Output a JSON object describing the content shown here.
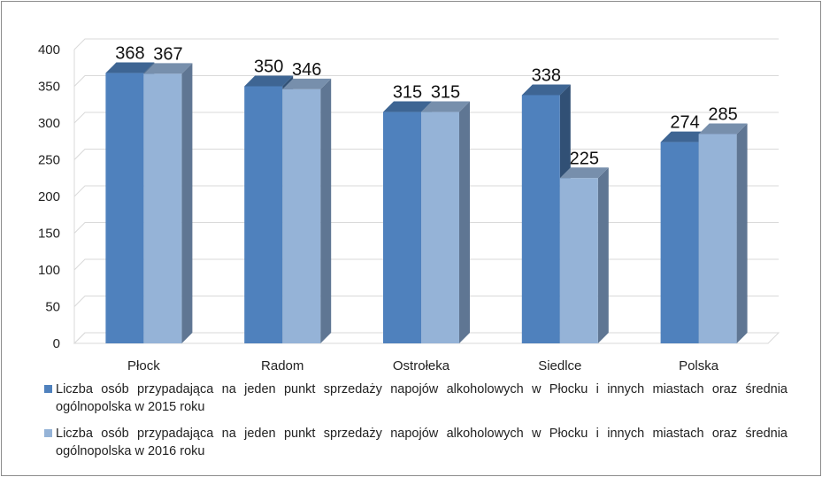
{
  "chart_data": {
    "type": "bar",
    "style": "3d-clustered-column",
    "categories": [
      "Płock",
      "Radom",
      "Ostrołeka",
      "Siedlce",
      "Polska"
    ],
    "series": [
      {
        "name": "Liczba osób  przypadająca na jeden punkt sprzedaży napojów alkoholowych w Płocku i innych miastach oraz średnia ogólnopolska w 2015 roku",
        "values": [
          368,
          350,
          315,
          338,
          274
        ],
        "color": "#4f81bd"
      },
      {
        "name": "Liczba osób  przypadająca na jeden punkt sprzedaży napojów alkoholowych w Płocku i innych miastach oraz średnia ogólnopolska w 2016 roku",
        "values": [
          367,
          346,
          315,
          225,
          285
        ],
        "color": "#95b3d7"
      }
    ],
    "ylim": [
      0,
      400
    ],
    "yticks": [
      0,
      50,
      100,
      150,
      200,
      250,
      300,
      350,
      400
    ],
    "grid": true,
    "legend_position": "bottom",
    "data_labels": true
  }
}
